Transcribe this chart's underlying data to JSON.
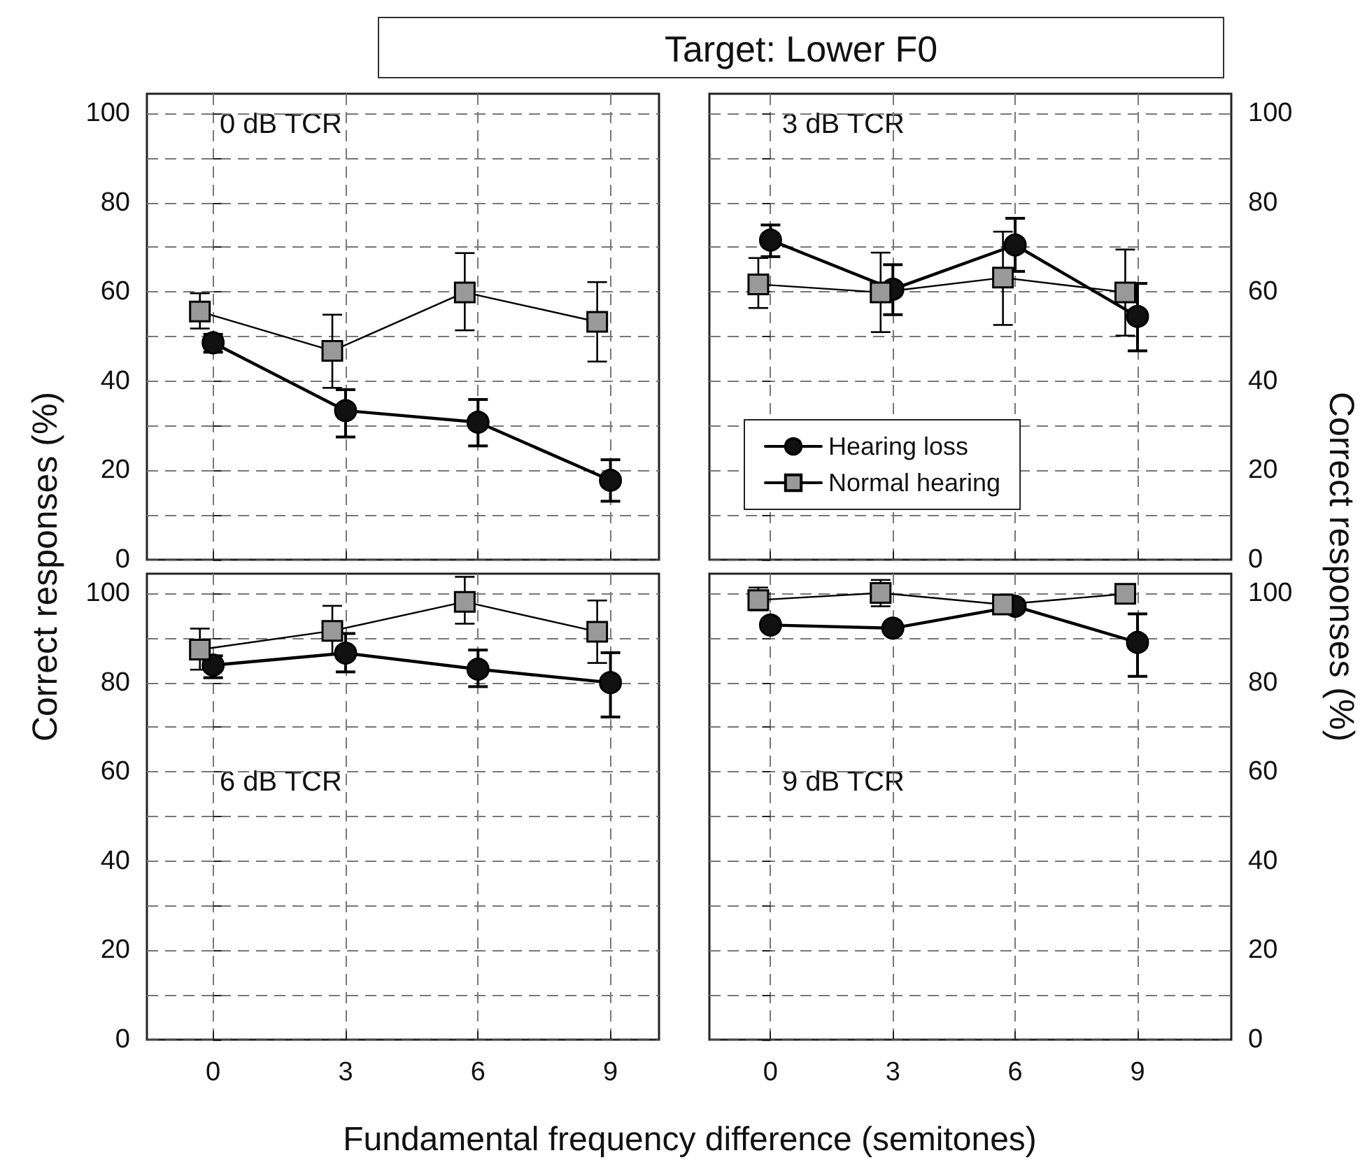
{
  "chart_data": [
    {
      "type": "line",
      "ylabel": "Correct responses (%)",
      "annotations": [
        "0 dB TCR"
      ],
      "xlim": [
        -1.5,
        10.1
      ],
      "xticks": [
        0,
        3,
        6,
        9
      ],
      "ylim": [
        0,
        104.4
      ],
      "yticks": [
        0,
        {
          "value": 10,
          "label": null
        },
        20,
        {
          "value": 30,
          "label": null
        },
        40,
        {
          "value": 50,
          "label": null
        },
        60,
        {
          "value": 70,
          "label": null
        },
        80,
        {
          "value": 90,
          "label": null
        },
        100
      ],
      "tick_labels": "y",
      "grid": true,
      "line_style": "solid",
      "series": [
        {
          "color": "#111111",
          "marker": "circle",
          "x": [
            0,
            3,
            6,
            9
          ],
          "values": [
            48.6,
            33.4,
            30.8,
            17.8
          ],
          "errors": [
            [
              46.5,
              50.5
            ],
            [
              27.5,
              38.1
            ],
            [
              25.5,
              35.9
            ],
            [
              13.1,
              22.4
            ]
          ]
        },
        {
          "color": "#999999",
          "marker": "square",
          "x": [
            -0.3,
            2.7,
            5.7,
            8.7
          ],
          "values": [
            55.6,
            46.8,
            59.9,
            53.3
          ],
          "errors": [
            [
              51.8,
              59.7
            ],
            [
              38.5,
              54.9
            ],
            [
              51.4,
              68.7
            ],
            [
              44.4,
              62.2
            ]
          ]
        }
      ]
    },
    {
      "type": "line",
      "title": "Target: Lower F0",
      "ylabel": "Correct responses (%)",
      "annotations": [
        "3 dB TCR"
      ],
      "xlim": [
        -1.5,
        11.3
      ],
      "xticks": [
        0,
        3,
        6,
        9
      ],
      "ylim": [
        0,
        104.4
      ],
      "yticks": [
        0,
        {
          "value": 10,
          "label": null
        },
        20,
        {
          "value": 30,
          "label": null
        },
        40,
        {
          "value": 50,
          "label": null
        },
        60,
        {
          "value": 70,
          "label": null
        },
        80,
        {
          "value": 90,
          "label": null
        },
        100
      ],
      "tick_labels": "y",
      "grid": true,
      "legend": "bottom",
      "line_style": "solid",
      "series": [
        {
          "name": "Hearing loss",
          "color": "#111111",
          "marker": "circle",
          "x": [
            0,
            3,
            6,
            9
          ],
          "values": [
            71.6,
            60.6,
            70.5,
            54.5
          ],
          "errors": [
            [
              67.9,
              75
            ],
            [
              54.9,
              66.1
            ],
            [
              64.6,
              76.5
            ],
            [
              46.8,
              61.9
            ]
          ]
        },
        {
          "name": "Normal hearing",
          "color": "#999999",
          "marker": "square",
          "x": [
            -0.3,
            2.7,
            5.7,
            8.7
          ],
          "values": [
            61.7,
            59.9,
            63.2,
            59.9
          ],
          "errors": [
            [
              56.4,
              67.6
            ],
            [
              51,
              68.8
            ],
            [
              52.6,
              73.5
            ],
            [
              50.2,
              69.5
            ]
          ]
        }
      ]
    },
    {
      "type": "line",
      "xlabel": "Fundamental frequency difference (semitones)",
      "annotations": [
        "6 dB TCR"
      ],
      "xlim": [
        -1.5,
        10.1
      ],
      "xticks": [
        0,
        3,
        6,
        9
      ],
      "ylim": [
        0,
        104.4
      ],
      "yticks": [
        0,
        {
          "value": 10,
          "label": null
        },
        20,
        {
          "value": 30,
          "label": null
        },
        40,
        {
          "value": 50,
          "label": null
        },
        60,
        {
          "value": 70,
          "label": null
        },
        80,
        {
          "value": 90,
          "label": null
        },
        100
      ],
      "grid": true,
      "line_style": "solid",
      "series": [
        {
          "color": "#111111",
          "marker": "circle",
          "x": [
            0,
            3,
            6,
            9
          ],
          "values": [
            83.9,
            86.6,
            83,
            80
          ],
          "errors": [
            [
              81.1,
              86
            ],
            [
              82.4,
              91
            ],
            [
              79.1,
              87.3
            ],
            [
              72.3,
              86.7
            ]
          ]
        },
        {
          "color": "#999999",
          "marker": "square",
          "x": [
            -0.3,
            2.7,
            5.7,
            8.7
          ],
          "values": [
            87.4,
            91.6,
            98.1,
            91.4
          ],
          "errors": [
            [
              82.9,
              92.1
            ],
            [
              86.3,
              97.2
            ],
            [
              93.2,
              103.7
            ],
            [
              84.4,
              98.4
            ]
          ]
        }
      ]
    },
    {
      "type": "line",
      "annotations": [
        "9 dB TCR"
      ],
      "xlim": [
        -1.5,
        11.3
      ],
      "xticks": [
        0,
        3,
        6,
        9
      ],
      "ylim": [
        0,
        104.4
      ],
      "yticks": [
        0,
        {
          "value": 10,
          "label": null
        },
        20,
        {
          "value": 30,
          "label": null
        },
        40,
        {
          "value": 50,
          "label": null
        },
        60,
        {
          "value": 70,
          "label": null
        },
        80,
        {
          "value": 90,
          "label": null
        },
        100
      ],
      "grid": true,
      "line_style": "solid",
      "series": [
        {
          "color": "#111111",
          "marker": "circle",
          "x": [
            0,
            3,
            6,
            9
          ],
          "values": [
            92.9,
            92.2,
            97.1,
            89
          ],
          "errors": [
            null,
            null,
            null,
            [
              81.4,
              95.4
            ]
          ]
        },
        {
          "color": "#999999",
          "marker": "square",
          "x": [
            -0.3,
            2.7,
            5.7,
            8.7
          ],
          "values": [
            98.5,
            100.1,
            97.5,
            99.9
          ],
          "errors": [
            [
              96.2,
              101.3
            ],
            [
              97.1,
              103
            ],
            null,
            null
          ]
        }
      ]
    }
  ]
}
